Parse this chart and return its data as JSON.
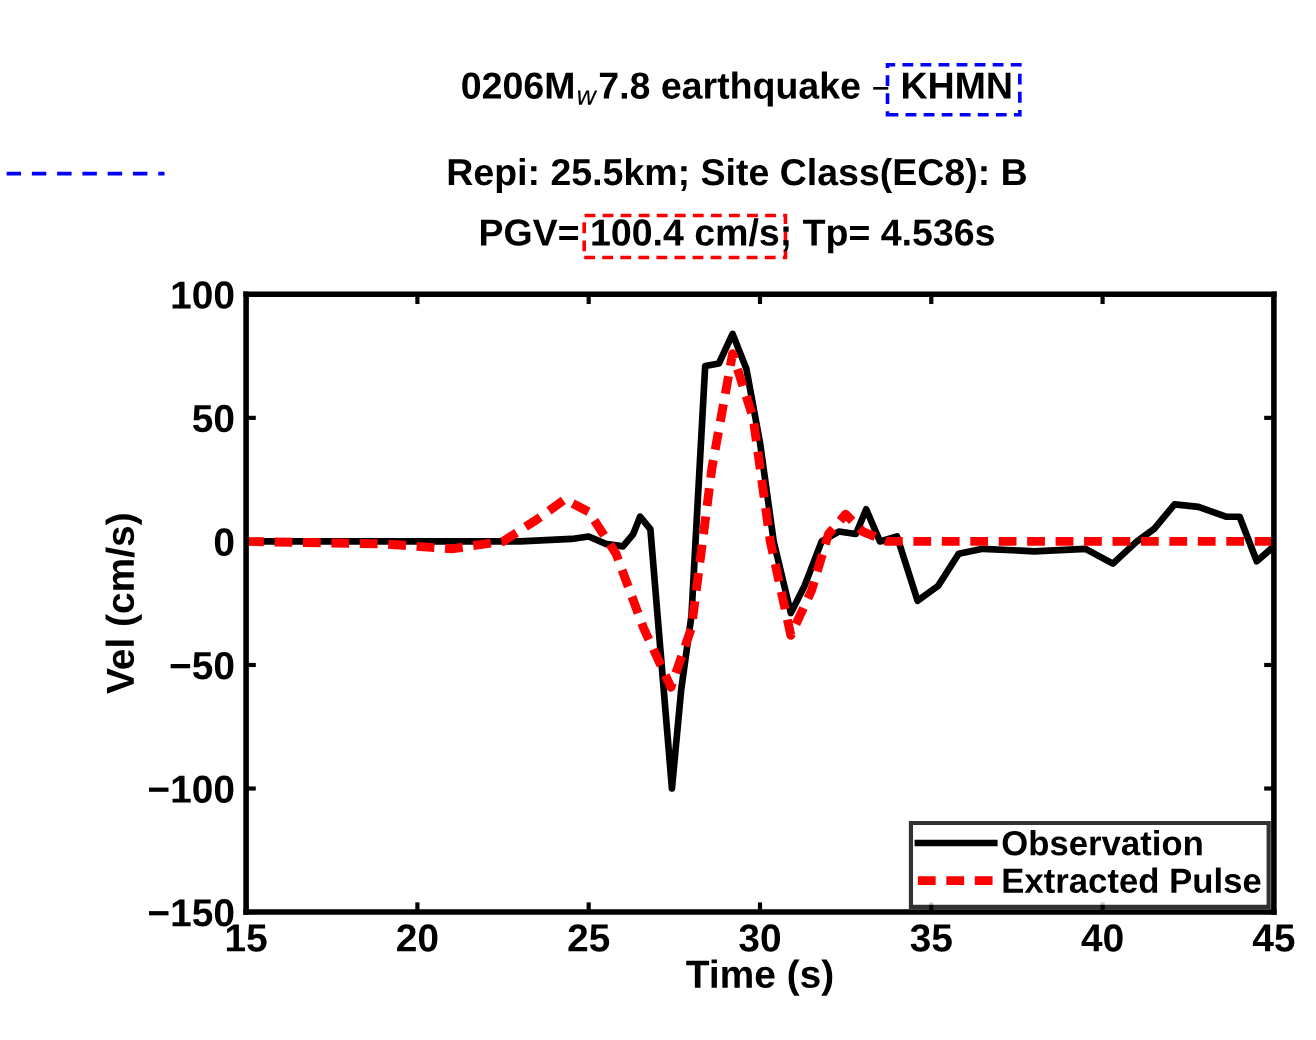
{
  "chart_data": {
    "type": "line",
    "title": "0206M$_{w}$7.8 earthquake – KHMN",
    "subtitle": "Repi: 25.5km; Site Class(EC8): B\nPGV= 100.4 cm/s; Tp= 4.536s",
    "xlabel": "Time (s)",
    "ylabel": "Vel (cm/s)",
    "series": [
      {
        "name": "Observation",
        "color": "#000000",
        "line_style": "solid",
        "x": [
          15,
          20,
          23,
          24.5,
          25,
          25.5,
          26,
          26.3,
          26.5,
          26.8,
          27.1,
          27.43,
          27.7,
          28,
          28.4,
          28.8,
          29.2,
          29.6,
          30.0,
          30.4,
          30.9,
          31.3,
          31.8,
          32.3,
          32.8,
          33.1,
          33.5,
          34,
          34.6,
          35.2,
          35.8,
          36.5,
          38,
          39.5,
          40.3,
          41,
          41.5,
          42.1,
          42.8,
          43.6,
          44,
          44.5,
          45
        ],
        "values": [
          0,
          0,
          0,
          1,
          2,
          -1,
          -2,
          3,
          10,
          5,
          -45,
          -100,
          -60,
          -30,
          71,
          72,
          84,
          70,
          40,
          0,
          -29,
          -18,
          0,
          4,
          3,
          13,
          0,
          2,
          -24,
          -18,
          -5,
          -3,
          -4,
          -3,
          -9,
          0,
          5,
          15,
          14,
          10,
          10,
          -8,
          -2
        ]
      },
      {
        "name": "Extracted Pulse",
        "color": "#ff0000",
        "line_style": "dashed",
        "x": [
          15,
          19,
          21,
          22.5,
          23.5,
          24.3,
          25,
          25.8,
          26.6,
          27.4,
          28,
          28.6,
          29.2,
          29.8,
          30.3,
          30.9,
          31.5,
          32,
          32.5,
          33,
          33.7,
          35,
          40,
          45
        ],
        "values": [
          0,
          -1,
          -3,
          0,
          9,
          17,
          12,
          -5,
          -35,
          -59,
          -35,
          30,
          76,
          50,
          0,
          -38,
          -20,
          3,
          11,
          4,
          0,
          0,
          0,
          0
        ]
      }
    ],
    "xlim": [
      15,
      45
    ],
    "ylim": [
      -150,
      100
    ],
    "xticks": [
      15,
      20,
      25,
      30,
      35,
      40,
      45
    ],
    "yticks": [
      -150,
      -100,
      -50,
      0,
      50,
      100
    ],
    "grid": false,
    "legend": "bottom right"
  }
}
